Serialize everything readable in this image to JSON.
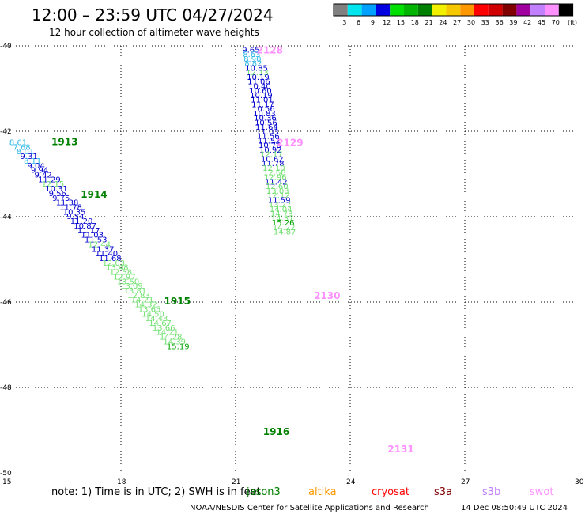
{
  "title": "12:00 – 23:59 UTC 04/27/2024",
  "subtitle": "12 hour collection of altimeter wave heights",
  "note": "note:  1) Time is in UTC; 2) SWH is in feet",
  "credit": "NOAA/NESDIS Center for Satellite Applications and Research",
  "generated": "14 Dec 08:50:49 UTC 2024",
  "legend": {
    "unit": "(ft)",
    "labels": [
      "3",
      "6",
      "9",
      "12",
      "15",
      "18",
      "21",
      "24",
      "27",
      "30",
      "33",
      "36",
      "39",
      "42",
      "45",
      "70"
    ],
    "colors": [
      "#808080",
      "#00e5ee",
      "#00a0ff",
      "#0000e0",
      "#00e000",
      "#00b400",
      "#008000",
      "#f0f000",
      "#f5c800",
      "#ff9800",
      "#ff0000",
      "#d00000",
      "#800000",
      "#a000a0",
      "#c080ff",
      "#ff90ff",
      "#000000"
    ]
  },
  "satellites": [
    {
      "name": "jason3",
      "color": "#008000"
    },
    {
      "name": "altika",
      "color": "#ff9800"
    },
    {
      "name": "cryosat",
      "color": "#ff0000"
    },
    {
      "name": "s3a",
      "color": "#800000"
    },
    {
      "name": "s3b",
      "color": "#c080ff"
    },
    {
      "name": "swot",
      "color": "#ff90ff"
    }
  ],
  "chart_data": {
    "type": "scatter",
    "xlim": [
      15,
      30
    ],
    "ylim": [
      -50,
      -40
    ],
    "x_ticks": [
      15,
      18,
      21,
      24,
      27,
      30
    ],
    "y_ticks": [
      -40,
      -42,
      -44,
      -46,
      -48,
      -50
    ],
    "grid": true,
    "pass_labels": [
      {
        "label": "1913",
        "x": 16.18,
        "y": -42.23,
        "color": "#008000"
      },
      {
        "label": "1914",
        "x": 16.95,
        "y": -43.46,
        "color": "#008000"
      },
      {
        "label": "1915",
        "x": 19.13,
        "y": -45.96,
        "color": "#008000"
      },
      {
        "label": "1916",
        "x": 21.72,
        "y": -49.02,
        "color": "#008000"
      },
      {
        "label": "2128",
        "x": 21.55,
        "y": -40.08,
        "color": "#ff90ff"
      },
      {
        "label": "2129",
        "x": 22.08,
        "y": -42.25,
        "color": "#ff90ff"
      },
      {
        "label": "2130",
        "x": 23.05,
        "y": -45.83,
        "color": "#ff90ff"
      },
      {
        "label": "2131",
        "x": 24.98,
        "y": -49.43,
        "color": "#ff90ff"
      }
    ],
    "passes": [
      {
        "x0": 15.08,
        "y0": -42.25,
        "dx": 0.0936,
        "dy": -0.1085,
        "values": [
          "8.61",
          "7.68",
          "8.01",
          "9.31",
          "8.11",
          "9.04",
          "9.94",
          "9.42",
          "11.29",
          "12.15",
          "10.31",
          "9.56",
          "9.75",
          "11.38",
          "11.78",
          "10.35",
          "9.54",
          "11.20",
          "10.87",
          "11.17",
          "11.03",
          "11.53",
          "12.44",
          "11.37",
          "11.40",
          "11.68",
          "12.03",
          "13.48",
          "12.58",
          "12.97",
          "13.50",
          "13.09",
          "13.81",
          "12.83",
          "14.21",
          "14.32",
          "13.65",
          "14.50",
          "14.43",
          "14.67",
          "13.66",
          "14.21",
          "14.28",
          "14.39",
          "15.19"
        ]
      },
      {
        "x0": 21.17,
        "y0": -40.08,
        "dx": 0.0205,
        "dy": -0.1066,
        "values": [
          "9.65",
          "8.63",
          "8.90",
          "8.82",
          "10.85",
          "12.13",
          "10.19",
          "11.06",
          "10.40",
          "10.60",
          "10.19",
          "11.01",
          "11.17",
          "10.56",
          "10.83",
          "10.36",
          "10.56",
          "11.64",
          "11.03",
          "11.56",
          "11.52",
          "10.76",
          "10.92",
          "12.17",
          "10.62",
          "11.78",
          "12.10",
          "12.68",
          "12.96",
          "11.42",
          "12.60",
          "13.03",
          "12.12",
          "11.59",
          "13.27",
          "14.04",
          "14.73",
          "14.37",
          "15.26",
          "14.22",
          "14.87"
        ]
      }
    ]
  }
}
